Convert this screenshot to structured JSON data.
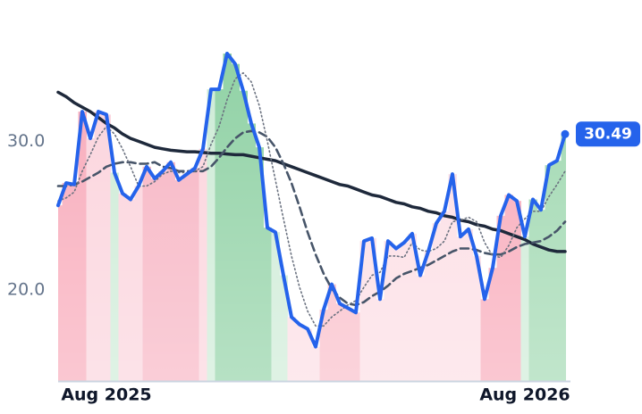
{
  "chart_data": {
    "type": "line",
    "x": [
      0,
      1,
      2,
      3,
      4,
      5,
      6,
      7,
      8,
      9,
      10,
      11,
      12,
      13,
      14,
      15,
      16,
      17,
      18,
      19,
      20,
      21,
      22,
      23,
      24,
      25,
      26,
      27,
      28,
      29,
      30,
      31,
      32,
      33,
      34,
      35,
      36,
      37,
      38,
      39,
      40,
      41,
      42,
      43,
      44,
      45,
      46,
      47,
      48,
      49,
      50,
      51,
      52,
      53,
      54,
      55,
      56,
      57,
      58,
      59,
      60,
      61,
      62,
      63
    ],
    "xlim": [
      0,
      63
    ],
    "xticks": [
      {
        "value": 6,
        "label": "Aug 2025"
      },
      {
        "value": 58,
        "label": "Aug 2026"
      }
    ],
    "ylim": [
      13.9,
      37.1
    ],
    "yticks": [
      {
        "value": 20,
        "label": "20.0"
      },
      {
        "value": 30,
        "label": "30.0"
      }
    ],
    "series": [
      {
        "color": "#2563eb",
        "style": "solid",
        "values": [
          25.7,
          27.2,
          27.1,
          32.0,
          30.2,
          32.0,
          31.8,
          27.9,
          26.5,
          26.1,
          27.0,
          28.3,
          27.5,
          28.0,
          28.6,
          27.4,
          27.8,
          28.2,
          29.5,
          33.5,
          33.5,
          35.9,
          35.2,
          33.4,
          31.2,
          29.6,
          24.2,
          23.9,
          21.0,
          18.2,
          17.7,
          17.4,
          16.2,
          18.7,
          20.4,
          19.1,
          18.8,
          18.5,
          23.3,
          23.5,
          19.4,
          23.3,
          22.8,
          23.2,
          23.8,
          21.0,
          22.6,
          24.5,
          25.3,
          27.8,
          23.6,
          24.1,
          22.3,
          19.4,
          21.5,
          25.0,
          26.4,
          26.0,
          23.6,
          26.1,
          25.4,
          28.4,
          28.7,
          30.49
        ],
        "bar_colors": [
          "#f8a9b9",
          "#f8a9b9",
          "#f8a9b9",
          "#f8a9b9",
          "#fbd3dc",
          "#fbd3dc",
          "#fbd3dc",
          "#cdebd6",
          "#fbd3dc",
          "#fbd3dc",
          "#fbd3dc",
          "#f7b3c2",
          "#f7b3c2",
          "#f7b3c2",
          "#f7b3c2",
          "#f7b3c2",
          "#f7b3c2",
          "#f7b3c2",
          "#fbd3dc",
          "#cdebd6",
          "#8fd1a4",
          "#8fd1a4",
          "#8fd1a4",
          "#8fd1a4",
          "#8fd1a4",
          "#8fd1a4",
          "#8fd1a4",
          "#cdebd6",
          "#cdebd6",
          "#fcdde4",
          "#fcdde4",
          "#fcdde4",
          "#fcdde4",
          "#f9bcc8",
          "#f9bcc8",
          "#f9bcc8",
          "#f9bcc8",
          "#f9bcc8",
          "#fcdde4",
          "#fcdde4",
          "#fcdde4",
          "#fcdde4",
          "#fcdde4",
          "#fcdde4",
          "#fcdde4",
          "#fcdde4",
          "#fcdde4",
          "#fcdde4",
          "#fcdde4",
          "#fcdde4",
          "#fcdde4",
          "#fcdde4",
          "#fcdde4",
          "#f8a9b9",
          "#f8a9b9",
          "#f8a9b9",
          "#f8a9b9",
          "#f8a9b9",
          "#cdebd6",
          "#9fd8b0",
          "#9fd8b0",
          "#9fd8b0",
          "#9fd8b0",
          "#9fd8b0"
        ]
      },
      {
        "color": "#6b7280",
        "style": "dotted",
        "values": [
          26.0,
          26.2,
          26.6,
          28.0,
          29.1,
          30.3,
          31.0,
          30.5,
          29.5,
          28.3,
          27.0,
          27.0,
          27.3,
          27.8,
          28.0,
          27.9,
          27.9,
          28.0,
          28.3,
          29.8,
          31.0,
          32.8,
          34.2,
          34.6,
          34.0,
          32.4,
          30.0,
          27.4,
          24.8,
          22.3,
          20.2,
          18.6,
          17.6,
          17.6,
          18.2,
          18.6,
          19.0,
          19.3,
          20.2,
          21.0,
          21.2,
          22.3,
          22.3,
          22.2,
          23.2,
          22.7,
          22.6,
          22.8,
          23.3,
          24.6,
          24.7,
          24.9,
          24.6,
          23.2,
          22.3,
          22.2,
          23.0,
          24.2,
          24.8,
          25.3,
          25.3,
          26.3,
          27.1,
          28.0
        ]
      },
      {
        "color": "#475569",
        "style": "dashed",
        "values": [
          27.0,
          27.0,
          27.1,
          27.3,
          27.6,
          27.9,
          28.3,
          28.5,
          28.6,
          28.6,
          28.5,
          28.5,
          28.6,
          28.3,
          28.2,
          28.0,
          28.0,
          28.0,
          28.0,
          28.3,
          28.9,
          29.6,
          30.2,
          30.6,
          30.7,
          30.6,
          30.3,
          29.6,
          28.5,
          27.2,
          25.6,
          23.9,
          22.4,
          21.1,
          20.1,
          19.5,
          19.1,
          19.0,
          19.2,
          19.6,
          19.9,
          20.3,
          20.8,
          21.1,
          21.3,
          21.5,
          21.7,
          22.0,
          22.3,
          22.6,
          22.8,
          22.8,
          22.7,
          22.5,
          22.4,
          22.4,
          22.6,
          22.9,
          23.1,
          23.2,
          23.3,
          23.6,
          24.0,
          24.6
        ]
      },
      {
        "color": "#1e293b",
        "style": "solid",
        "values": [
          33.3,
          33.0,
          32.6,
          32.3,
          32.0,
          31.6,
          31.2,
          30.9,
          30.5,
          30.2,
          30.0,
          29.8,
          29.6,
          29.5,
          29.4,
          29.35,
          29.3,
          29.3,
          29.25,
          29.2,
          29.2,
          29.15,
          29.1,
          29.1,
          29.0,
          28.9,
          28.8,
          28.7,
          28.5,
          28.3,
          28.1,
          27.9,
          27.7,
          27.5,
          27.3,
          27.1,
          27.0,
          26.8,
          26.6,
          26.4,
          26.3,
          26.1,
          25.9,
          25.8,
          25.6,
          25.5,
          25.3,
          25.2,
          25.0,
          24.9,
          24.7,
          24.6,
          24.4,
          24.3,
          24.1,
          24.0,
          23.8,
          23.6,
          23.4,
          23.1,
          22.9,
          22.7,
          22.6,
          22.6
        ]
      }
    ]
  }
}
